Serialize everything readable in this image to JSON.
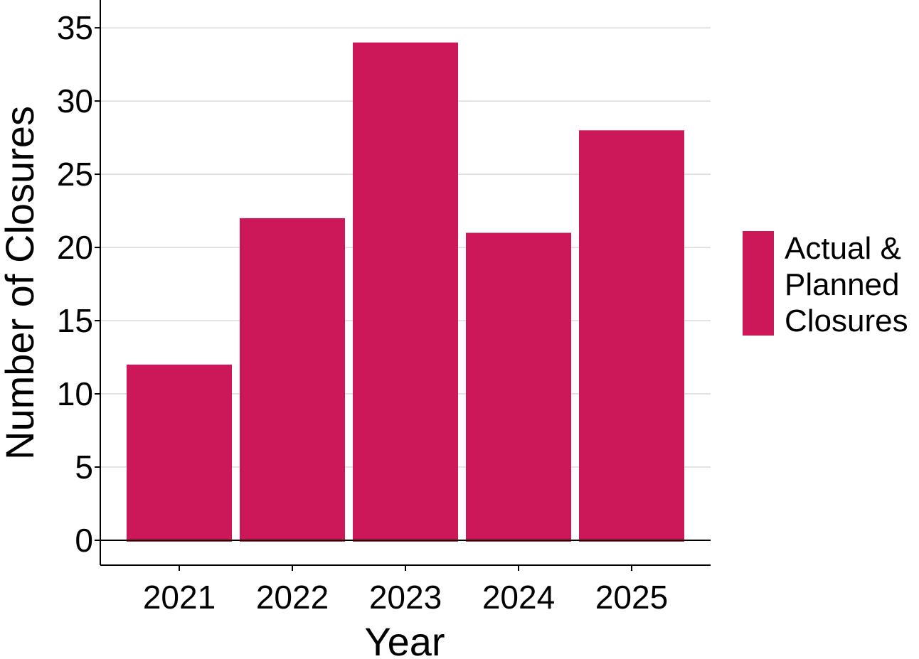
{
  "chart_data": {
    "type": "bar",
    "categories": [
      "2021",
      "2022",
      "2023",
      "2024",
      "2025"
    ],
    "series": [
      {
        "name": "Actual & Planned Closures",
        "values": [
          12,
          22,
          34,
          21,
          28
        ],
        "color": "#CC1759"
      }
    ],
    "xlabel": "Year",
    "ylabel": "Number of Closures",
    "ylim": [
      -1.7,
      36.9
    ],
    "yticks": [
      0,
      5,
      10,
      15,
      20,
      25,
      30,
      35
    ],
    "grid": "horizontal",
    "legend": {
      "position": "right",
      "lines": [
        "Actual &",
        "Planned",
        "Closures"
      ]
    }
  }
}
